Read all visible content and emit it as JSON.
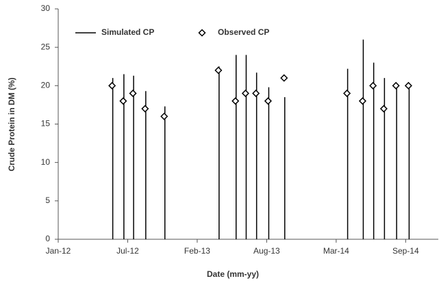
{
  "chart_data": {
    "type": "scatter",
    "x_label": "Date (mm-yy)",
    "y_label": "Crude Protein  in DM (%)",
    "x": [
      41066,
      41098,
      41126,
      41161,
      41216,
      41372,
      41421,
      41450,
      41480,
      41515,
      41561,
      41742,
      41787,
      41817,
      41848,
      41883,
      41919
    ],
    "series": [
      {
        "name": "Simulated CP",
        "color": "#000000",
        "marker": "stem",
        "values": [
          21,
          21.5,
          21.3,
          19.3,
          17.3,
          22.5,
          24,
          24,
          21.7,
          19.8,
          18.5,
          22.2,
          26,
          23,
          21,
          20.3,
          19.8
        ]
      },
      {
        "name": "Observed CP",
        "color": "#000000",
        "marker": "diamond",
        "values": [
          20,
          18,
          19,
          17,
          16,
          22,
          18,
          19,
          19,
          18,
          21,
          19,
          18,
          20,
          17,
          20,
          20
        ]
      }
    ],
    "xlim": [
      40909,
      42003
    ],
    "xticks": [
      {
        "value": 40909,
        "label": "Jan-12"
      },
      {
        "value": 41109,
        "label": "Jul-12"
      },
      {
        "value": 41309,
        "label": "Feb-13"
      },
      {
        "value": 41509,
        "label": "Aug-13"
      },
      {
        "value": 41709,
        "label": "Mar-14"
      },
      {
        "value": 41909,
        "label": "Sep-14"
      }
    ],
    "ylim": [
      0,
      30
    ],
    "yticks": [
      0,
      5,
      10,
      15,
      20,
      25,
      30
    ],
    "grid": false,
    "legend": "top-left"
  }
}
